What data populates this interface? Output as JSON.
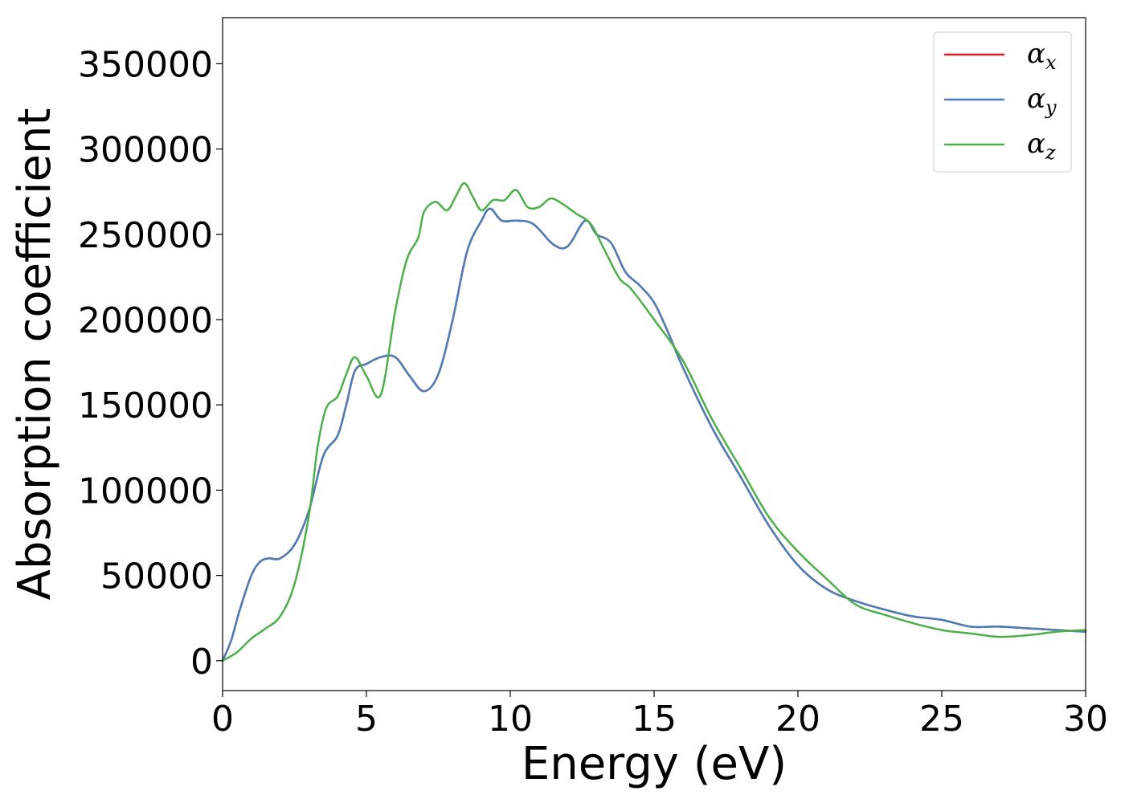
{
  "chart_data": {
    "type": "line",
    "title": "",
    "xlabel": "Energy (eV)",
    "ylabel": "Absorption coefficient",
    "xlim": [
      0,
      30
    ],
    "ylim": [
      -17500,
      377000
    ],
    "xticks": [
      0,
      5,
      10,
      15,
      20,
      25,
      30
    ],
    "yticks": [
      0,
      50000,
      100000,
      150000,
      200000,
      250000,
      300000,
      350000
    ],
    "xtick_labels": [
      "0",
      "5",
      "10",
      "15",
      "20",
      "25",
      "30"
    ],
    "ytick_labels": [
      "0",
      "50000",
      "100000",
      "150000",
      "200000",
      "250000",
      "300000",
      "350000"
    ],
    "grid": false,
    "legend_placement": "top-right",
    "series": [
      {
        "name": "α",
        "subscript": "x",
        "color": "#e41a1c",
        "x": [
          0,
          0.3,
          0.6,
          1.0,
          1.3,
          1.6,
          2.0,
          2.5,
          3.0,
          3.5,
          4.0,
          4.3,
          4.6,
          5.0,
          5.5,
          6.0,
          6.5,
          7.0,
          7.5,
          8.0,
          8.5,
          9.0,
          9.3,
          9.7,
          10.2,
          10.8,
          11.5,
          12.0,
          12.6,
          13.0,
          13.5,
          14.0,
          14.5,
          15.0,
          15.5,
          16.0,
          17.0,
          18.0,
          19.0,
          20.0,
          21.0,
          22.0,
          23.0,
          24.0,
          25.0,
          26.0,
          27.0,
          28.0,
          29.0,
          30.0
        ],
        "values": [
          0,
          12000,
          30000,
          50000,
          58000,
          60000,
          60000,
          68000,
          88000,
          120000,
          132000,
          150000,
          170000,
          174000,
          178000,
          178000,
          167000,
          158000,
          168000,
          200000,
          240000,
          258000,
          265000,
          258000,
          258000,
          256000,
          244000,
          243000,
          258000,
          250000,
          245000,
          228000,
          220000,
          210000,
          192000,
          172000,
          137000,
          108000,
          79000,
          56000,
          42000,
          35000,
          30000,
          26000,
          24000,
          20000,
          20000,
          19000,
          18000,
          17000
        ]
      },
      {
        "name": "α",
        "subscript": "y",
        "color": "#4a7fb8",
        "x": [
          0,
          0.3,
          0.6,
          1.0,
          1.3,
          1.6,
          2.0,
          2.5,
          3.0,
          3.5,
          4.0,
          4.3,
          4.6,
          5.0,
          5.5,
          6.0,
          6.5,
          7.0,
          7.5,
          8.0,
          8.5,
          9.0,
          9.3,
          9.7,
          10.2,
          10.8,
          11.5,
          12.0,
          12.6,
          13.0,
          13.5,
          14.0,
          14.5,
          15.0,
          15.5,
          16.0,
          17.0,
          18.0,
          19.0,
          20.0,
          21.0,
          22.0,
          23.0,
          24.0,
          25.0,
          26.0,
          27.0,
          28.0,
          29.0,
          30.0
        ],
        "values": [
          0,
          12000,
          30000,
          50000,
          58000,
          60000,
          60000,
          68000,
          88000,
          120000,
          132000,
          150000,
          170000,
          174000,
          178000,
          178000,
          167000,
          158000,
          168000,
          200000,
          240000,
          258000,
          265000,
          258000,
          258000,
          256000,
          244000,
          243000,
          258000,
          250000,
          245000,
          228000,
          220000,
          210000,
          192000,
          172000,
          137000,
          108000,
          79000,
          56000,
          42000,
          35000,
          30000,
          26000,
          24000,
          20000,
          20000,
          19000,
          18000,
          17000
        ]
      },
      {
        "name": "α",
        "subscript": "z",
        "color": "#4daf4a",
        "x": [
          0,
          0.5,
          1.0,
          1.5,
          2.0,
          2.5,
          3.0,
          3.3,
          3.6,
          4.0,
          4.3,
          4.6,
          5.0,
          5.5,
          6.0,
          6.4,
          6.8,
          7.0,
          7.4,
          7.8,
          8.1,
          8.4,
          8.7,
          9.0,
          9.4,
          9.8,
          10.2,
          10.6,
          11.0,
          11.4,
          11.8,
          12.3,
          12.8,
          13.3,
          13.8,
          14.2,
          15.0,
          16.0,
          17.0,
          18.0,
          19.0,
          20.0,
          21.0,
          22.0,
          23.0,
          24.0,
          25.0,
          26.0,
          27.0,
          28.0,
          29.0,
          30.0
        ],
        "values": [
          0,
          5000,
          13000,
          19000,
          26000,
          45000,
          85000,
          125000,
          148000,
          155000,
          168000,
          178000,
          167000,
          156000,
          205000,
          235000,
          248000,
          263000,
          269000,
          264000,
          272000,
          280000,
          272000,
          264000,
          270000,
          270000,
          276000,
          266000,
          266000,
          271000,
          268000,
          262000,
          256000,
          240000,
          224000,
          218000,
          200000,
          176000,
          142000,
          113000,
          84000,
          64000,
          48000,
          33000,
          27000,
          22000,
          18000,
          16000,
          14000,
          15000,
          17000,
          18000
        ]
      }
    ]
  }
}
